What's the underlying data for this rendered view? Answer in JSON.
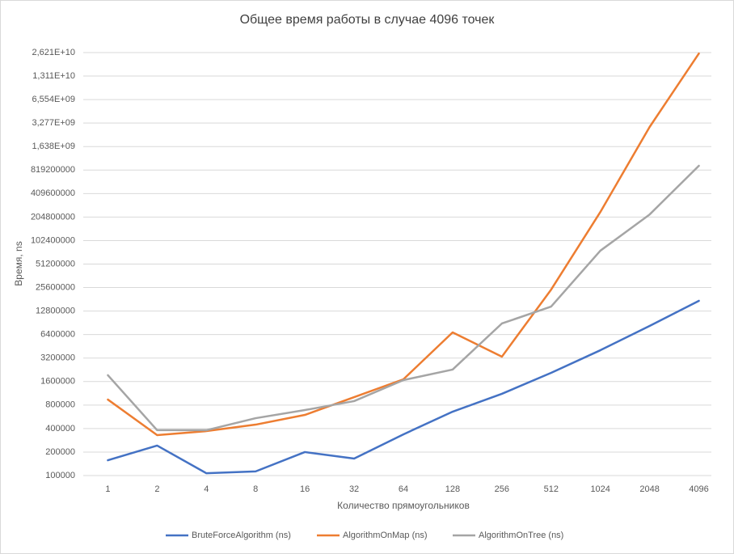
{
  "chart_data": {
    "type": "line",
    "title": "Общее время работы в случае 4096 точек",
    "x_label": "Количество прямоугольников",
    "y_label": "Время, ns",
    "categories": [
      "1",
      "2",
      "4",
      "8",
      "16",
      "32",
      "64",
      "128",
      "256",
      "512",
      "1024",
      "2048",
      "4096"
    ],
    "log_scale_y": 2,
    "grid": true,
    "legend": "bottom",
    "ylim": [
      100000,
      26214400000
    ],
    "yticks": [
      100000,
      200000,
      400000,
      800000,
      1600000,
      3200000,
      6400000,
      12800000,
      25600000,
      51200000,
      102400000,
      204800000,
      409600000,
      819200000,
      {
        "value": 1638400000,
        "label": "1,638E+09"
      },
      {
        "value": 3276800000,
        "label": "3,277E+09"
      },
      {
        "value": 6553600000,
        "label": "6,554E+09"
      },
      {
        "value": 13107200000,
        "label": "1,311E+10"
      },
      {
        "value": 26214400000,
        "label": "2,621E+10"
      }
    ],
    "series": [
      {
        "name": "BruteForceAlgorithm (ns)",
        "color": "#4472c4",
        "values": [
          157000,
          242000,
          107000,
          113000,
          200000,
          165000,
          337000,
          658000,
          1115000,
          2070000,
          4030000,
          8260000,
          17300000
        ]
      },
      {
        "name": "AlgorithmOnMap (ns)",
        "color": "#ed7d31",
        "values": [
          940000,
          330000,
          371000,
          449000,
          598000,
          1010000,
          1710000,
          6820000,
          3330000,
          24100000,
          238000000,
          2920000000,
          25500000000
        ]
      },
      {
        "name": "AlgorithmOnTree (ns)",
        "color": "#a5a5a5",
        "values": [
          1930000,
          381000,
          381000,
          543000,
          690000,
          899000,
          1670000,
          2280000,
          8870000,
          14600000,
          76000000,
          221000000,
          930000000
        ]
      }
    ]
  }
}
